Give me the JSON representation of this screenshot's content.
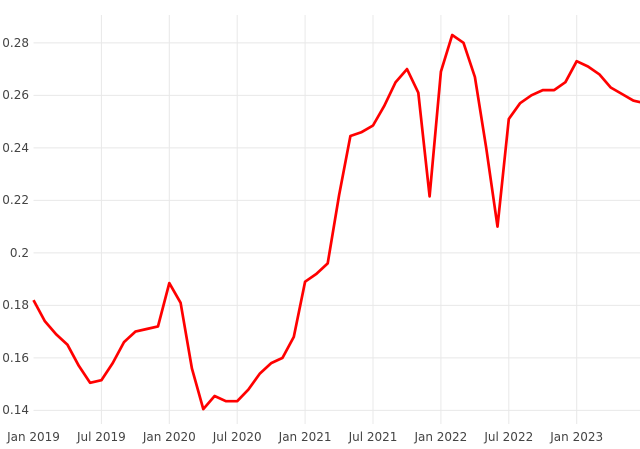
{
  "chart_data": {
    "type": "line",
    "title": "",
    "xlabel": "",
    "ylabel": "",
    "grid": true,
    "legend": "none",
    "background_color": "#ffffff",
    "grid_color": "#e8e8e8",
    "tick_text_color": "#444444",
    "line_color": "#ff0000",
    "ylim": [
      0.1352,
      0.2906
    ],
    "y_ticks": [
      {
        "label": "0.28",
        "value": 0.28
      },
      {
        "label": "0.26",
        "value": 0.26
      },
      {
        "label": "0.24",
        "value": 0.24
      },
      {
        "label": "0.22",
        "value": 0.22
      },
      {
        "label": "0.2",
        "value": 0.2
      },
      {
        "label": "0.18",
        "value": 0.18
      },
      {
        "label": "0.16",
        "value": 0.16
      },
      {
        "label": "0.14",
        "value": 0.14
      }
    ],
    "x_ticks": [
      {
        "label": "Jan 2019",
        "month_index": 0
      },
      {
        "label": "Jul 2019",
        "month_index": 6
      },
      {
        "label": "Jan 2020",
        "month_index": 12
      },
      {
        "label": "Jul 2020",
        "month_index": 18
      },
      {
        "label": "Jan 2021",
        "month_index": 24
      },
      {
        "label": "Jul 2021",
        "month_index": 30
      },
      {
        "label": "Jan 2022",
        "month_index": 36
      },
      {
        "label": "Jul 2022",
        "month_index": 42
      },
      {
        "label": "Jan 2023",
        "month_index": 48
      }
    ],
    "x_labels": [
      "Jan 2019",
      "Feb 2019",
      "Mar 2019",
      "Apr 2019",
      "May 2019",
      "Jun 2019",
      "Jul 2019",
      "Aug 2019",
      "Sep 2019",
      "Oct 2019",
      "Nov 2019",
      "Dec 2019",
      "Jan 2020",
      "Feb 2020",
      "Mar 2020",
      "Apr 2020",
      "May 2020",
      "Jun 2020",
      "Jul 2020",
      "Aug 2020",
      "Sep 2020",
      "Oct 2020",
      "Nov 2020",
      "Dec 2020",
      "Jan 2021",
      "Feb 2021",
      "Mar 2021",
      "Apr 2021",
      "May 2021",
      "Jun 2021",
      "Jul 2021",
      "Aug 2021",
      "Sep 2021",
      "Oct 2021",
      "Nov 2021",
      "Dec 2021",
      "Jan 2022",
      "Feb 2022",
      "Mar 2022",
      "Apr 2022",
      "May 2022",
      "Jun 2022",
      "Jul 2022",
      "Aug 2022",
      "Sep 2022",
      "Oct 2022",
      "Nov 2022",
      "Dec 2022",
      "Jan 2023",
      "Feb 2023",
      "Mar 2023",
      "Apr 2023",
      "May 2023",
      "Jun 2023",
      "Jul 2023"
    ],
    "series": [
      {
        "name": "value",
        "color": "#ff0000",
        "values": [
          0.182,
          0.174,
          0.169,
          0.165,
          0.157,
          0.1505,
          0.1515,
          0.158,
          0.166,
          0.17,
          0.171,
          0.172,
          0.1885,
          0.181,
          0.156,
          0.1405,
          0.1455,
          0.1435,
          0.1435,
          0.148,
          0.154,
          0.158,
          0.16,
          0.168,
          0.189,
          0.192,
          0.196,
          0.222,
          0.2445,
          0.246,
          0.2485,
          0.256,
          0.265,
          0.27,
          0.261,
          0.2215,
          0.269,
          0.283,
          0.28,
          0.267,
          0.24,
          0.21,
          0.251,
          0.257,
          0.26,
          0.262,
          0.262,
          0.265,
          0.273,
          0.271,
          0.268,
          0.263,
          0.2605,
          0.258,
          0.257
        ]
      }
    ]
  }
}
